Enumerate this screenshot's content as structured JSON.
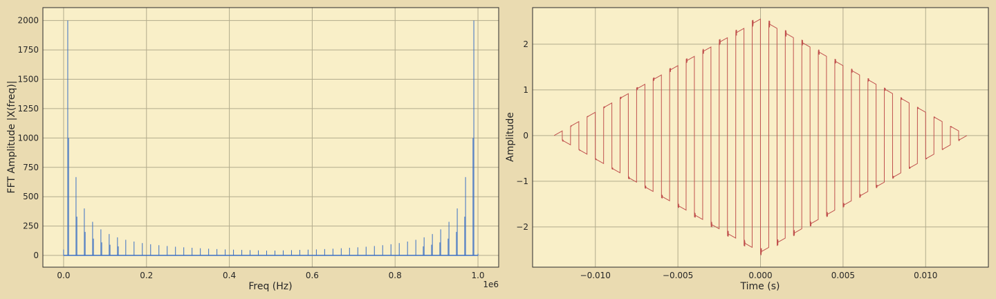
{
  "chart_data": [
    {
      "type": "line",
      "xlabel": "Freq (Hz)",
      "ylabel": "FFT Amplitude |X(freq)|",
      "x_offset_label": "1e6",
      "xlim": [
        -50000,
        1050000
      ],
      "ylim": [
        -100,
        2110
      ],
      "xticks": [
        0,
        200000,
        400000,
        600000,
        800000,
        1000000
      ],
      "xtick_labels": [
        "0.0",
        "0.2",
        "0.4",
        "0.6",
        "0.8",
        "1.0"
      ],
      "yticks": [
        0,
        250,
        500,
        750,
        1000,
        1250,
        1500,
        1750,
        2000
      ],
      "ytick_labels": [
        "0",
        "250",
        "500",
        "750",
        "1000",
        "1250",
        "1500",
        "1750",
        "2000"
      ],
      "grid": true,
      "color": "#3a6fc4",
      "peaks": [
        [
          0,
          50
        ],
        [
          10000,
          2000
        ],
        [
          12000,
          1000
        ],
        [
          30000,
          667
        ],
        [
          32000,
          330
        ],
        [
          50000,
          400
        ],
        [
          52000,
          200
        ],
        [
          70000,
          286
        ],
        [
          72000,
          143
        ],
        [
          90000,
          222
        ],
        [
          92000,
          111
        ],
        [
          110000,
          182
        ],
        [
          112000,
          91
        ],
        [
          130000,
          154
        ],
        [
          132000,
          77
        ],
        [
          150000,
          133
        ],
        [
          170000,
          118
        ],
        [
          190000,
          105
        ],
        [
          210000,
          95
        ],
        [
          230000,
          87
        ],
        [
          250000,
          80
        ],
        [
          270000,
          74
        ],
        [
          290000,
          69
        ],
        [
          310000,
          65
        ],
        [
          330000,
          61
        ],
        [
          350000,
          57
        ],
        [
          370000,
          54
        ],
        [
          390000,
          51
        ],
        [
          410000,
          49
        ],
        [
          430000,
          47
        ],
        [
          450000,
          45
        ],
        [
          470000,
          43
        ],
        [
          490000,
          41
        ],
        [
          510000,
          41
        ],
        [
          530000,
          43
        ],
        [
          550000,
          45
        ],
        [
          570000,
          47
        ],
        [
          590000,
          49
        ],
        [
          610000,
          51
        ],
        [
          630000,
          54
        ],
        [
          650000,
          57
        ],
        [
          670000,
          61
        ],
        [
          690000,
          65
        ],
        [
          710000,
          69
        ],
        [
          730000,
          74
        ],
        [
          750000,
          80
        ],
        [
          770000,
          87
        ],
        [
          790000,
          95
        ],
        [
          810000,
          105
        ],
        [
          830000,
          118
        ],
        [
          850000,
          133
        ],
        [
          868000,
          77
        ],
        [
          870000,
          154
        ],
        [
          888000,
          91
        ],
        [
          890000,
          182
        ],
        [
          908000,
          111
        ],
        [
          910000,
          222
        ],
        [
          928000,
          143
        ],
        [
          930000,
          286
        ],
        [
          948000,
          200
        ],
        [
          950000,
          400
        ],
        [
          968000,
          330
        ],
        [
          970000,
          667
        ],
        [
          988000,
          1000
        ],
        [
          990000,
          2000
        ],
        [
          1000000,
          15
        ]
      ]
    },
    {
      "type": "line",
      "xlabel": "Time (s)",
      "ylabel": "Amplitude",
      "xlim": [
        -0.0138,
        0.0138
      ],
      "ylim": [
        -2.88,
        2.8
      ],
      "xticks": [
        -0.01,
        -0.005,
        0,
        0.005,
        0.01
      ],
      "xtick_labels": [
        "−0.010",
        "−0.005",
        "0.000",
        "0.005",
        "0.010"
      ],
      "yticks": [
        -2,
        -1,
        0,
        1,
        2
      ],
      "ytick_labels": [
        "−2",
        "−1",
        "0",
        "1",
        "2"
      ],
      "grid": true,
      "color": "#c0504d",
      "signal": {
        "t_start": -0.0125,
        "t_end": 0.0125,
        "square_freq_hz": 1000,
        "envelope_peak": 2.55
      }
    }
  ]
}
